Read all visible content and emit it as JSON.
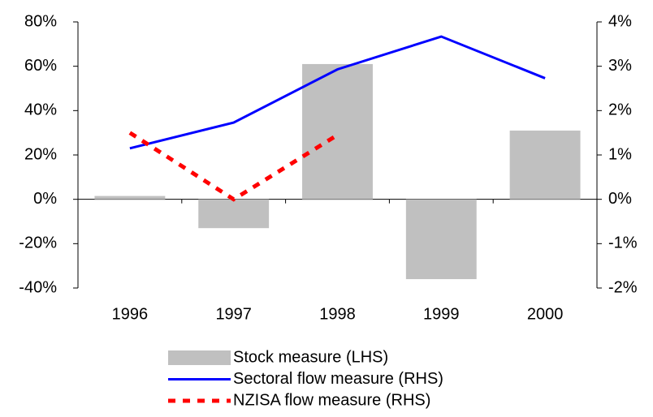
{
  "chart_data": {
    "type": "combo",
    "categories": [
      "1996",
      "1997",
      "1998",
      "1999",
      "2000"
    ],
    "series": [
      {
        "name": "Stock measure (LHS)",
        "type": "bar",
        "color": "#c0c0c0",
        "values": [
          1.5,
          -13,
          61,
          -36,
          31
        ]
      },
      {
        "name": "Sectoral flow measure (RHS)",
        "type": "line",
        "color": "#0000ff",
        "axis": "y2",
        "dashed": false,
        "values": [
          1.15,
          1.73,
          2.93,
          3.67,
          2.73
        ]
      },
      {
        "name": "NZISA flow measure (RHS)",
        "type": "line",
        "color": "#ff0000",
        "axis": "y2",
        "dashed": true,
        "values": [
          1.5,
          0.0,
          1.45,
          null,
          null
        ]
      }
    ],
    "ylim": [
      -40,
      80
    ],
    "yticks": [
      {
        "value": -40,
        "label": "-40%"
      },
      {
        "value": -20,
        "label": "-20%"
      },
      {
        "value": 0,
        "label": "0%"
      },
      {
        "value": 20,
        "label": "20%"
      },
      {
        "value": 40,
        "label": "40%"
      },
      {
        "value": 60,
        "label": "60%"
      },
      {
        "value": 80,
        "label": "80%"
      }
    ],
    "y2lim": [
      -2,
      4
    ],
    "y2ticks": [
      {
        "value": -2,
        "label": "-2%"
      },
      {
        "value": -1,
        "label": "-1%"
      },
      {
        "value": 0,
        "label": "0%"
      },
      {
        "value": 1,
        "label": "1%"
      },
      {
        "value": 2,
        "label": "2%"
      },
      {
        "value": 3,
        "label": "3%"
      },
      {
        "value": 4,
        "label": "4%"
      }
    ],
    "grid": false,
    "legend": "bottom"
  }
}
